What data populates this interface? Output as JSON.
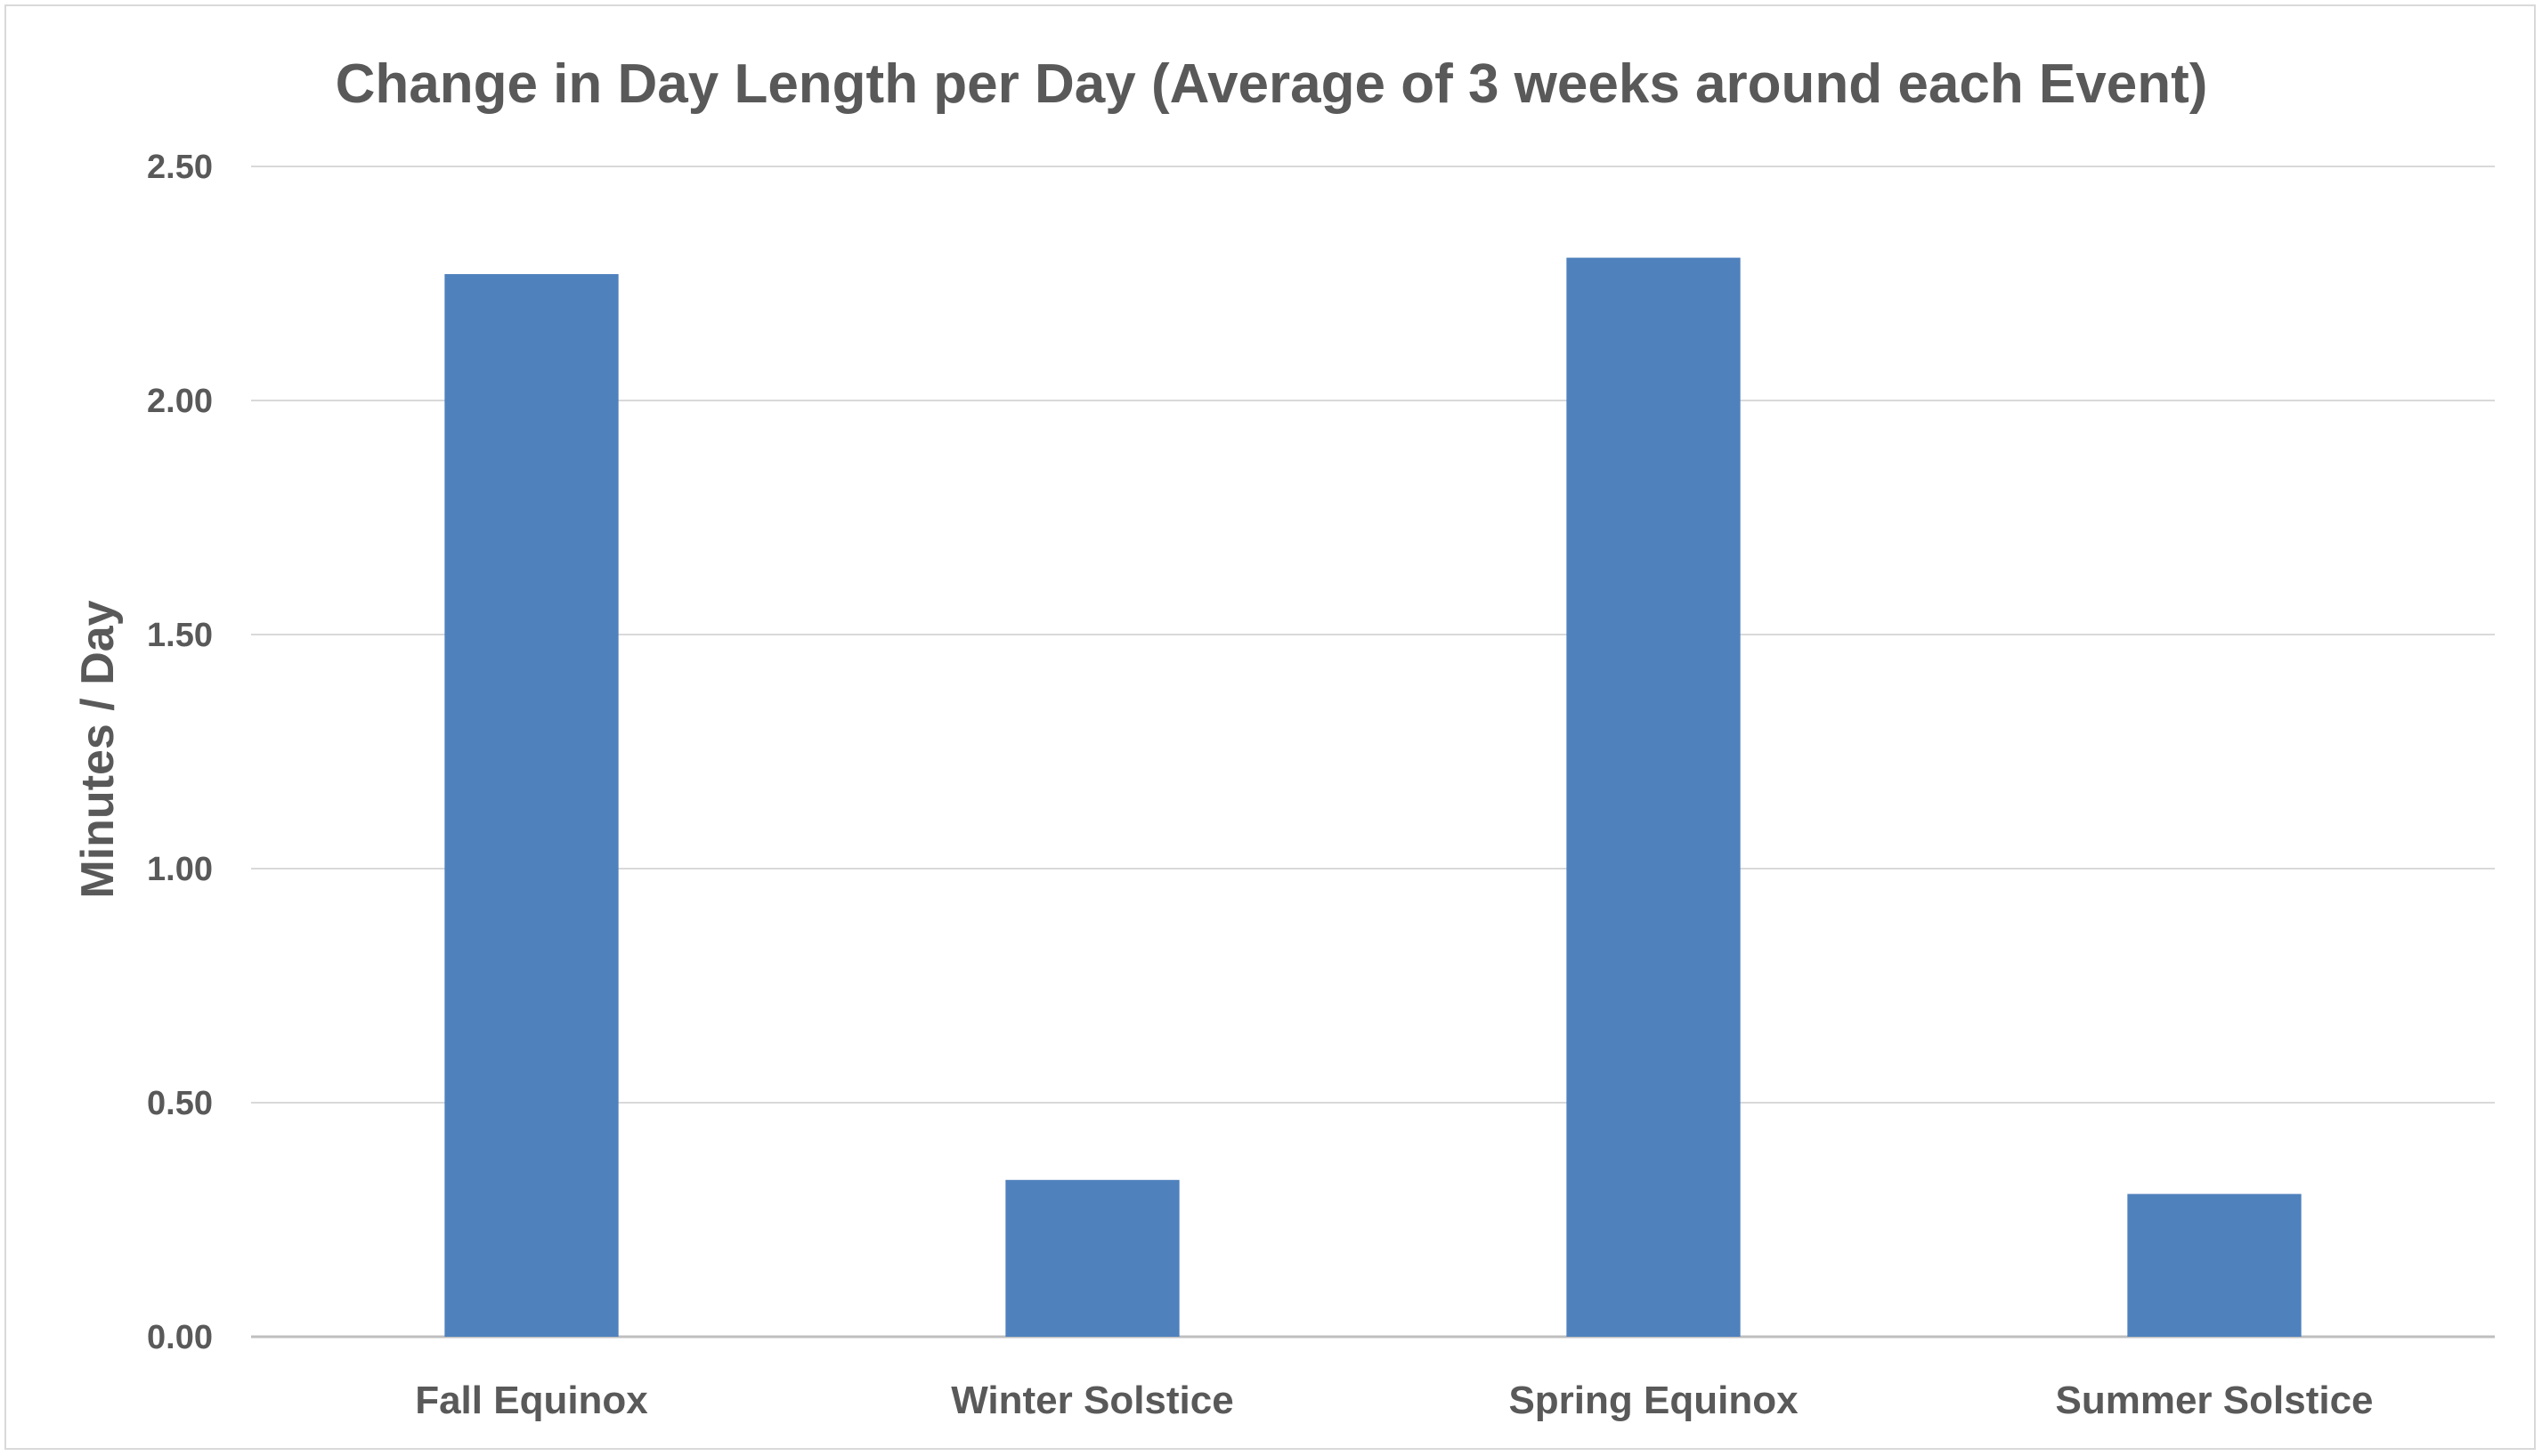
{
  "chart_data": {
    "type": "bar",
    "title": "Change in Day Length per Day (Average of 3 weeks around each Event)",
    "xlabel": "",
    "ylabel": "Minutes / Day",
    "categories": [
      "Fall Equinox",
      "Winter Solstice",
      "Spring Equinox",
      "Summer Solstice"
    ],
    "values": [
      2.27,
      0.335,
      2.305,
      0.305
    ],
    "ylim": [
      0,
      2.5
    ],
    "yticks": [
      "0.00",
      "0.50",
      "1.00",
      "1.50",
      "2.00",
      "2.50"
    ],
    "grid": true,
    "legend": "none",
    "bar_color": "#4f81bd"
  }
}
